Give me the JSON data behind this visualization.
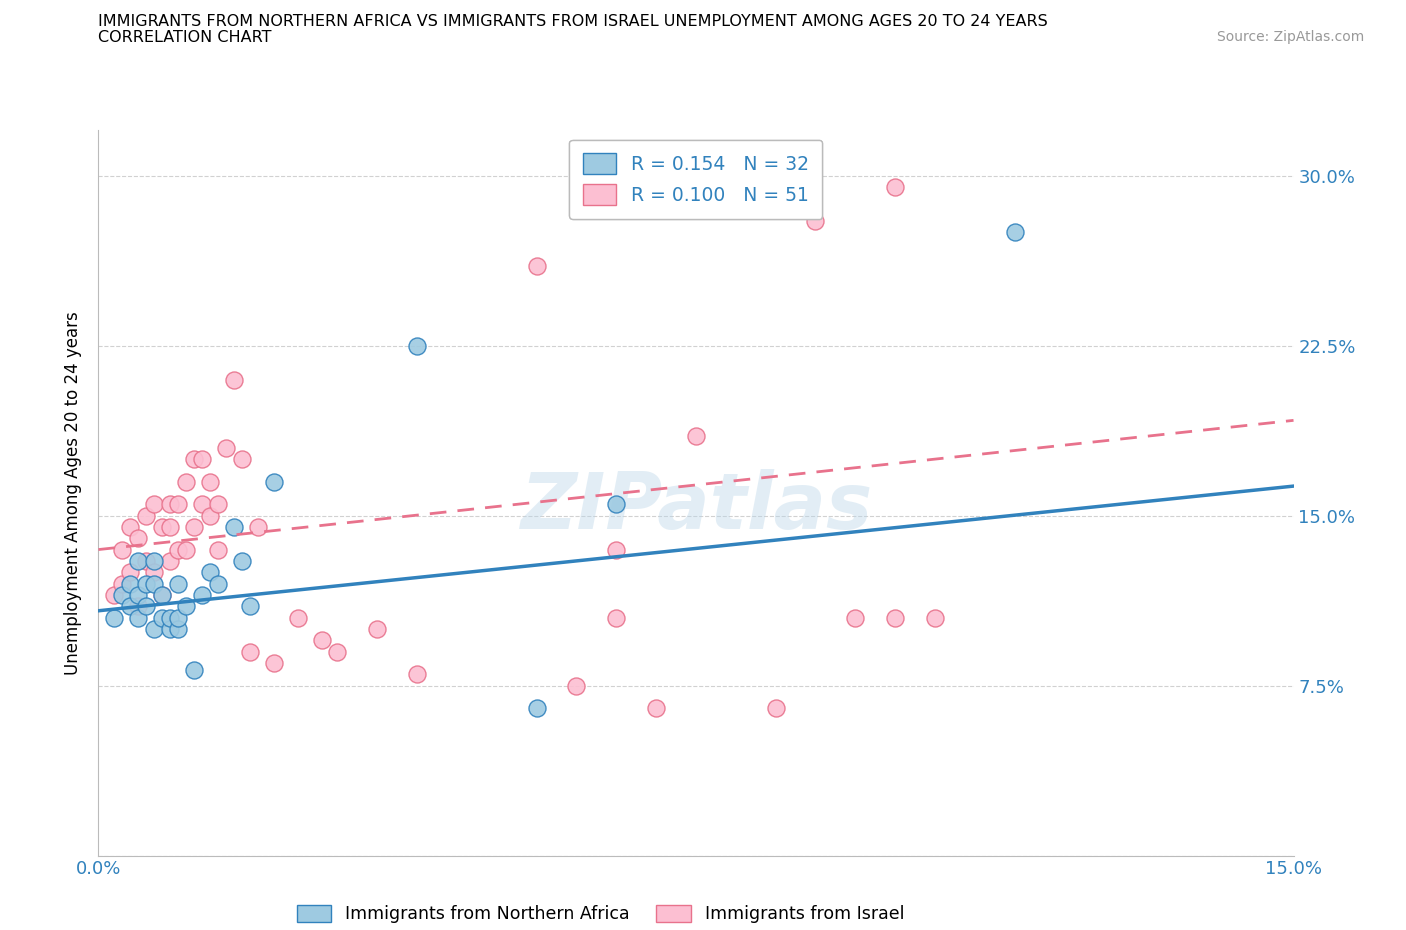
{
  "title_line1": "IMMIGRANTS FROM NORTHERN AFRICA VS IMMIGRANTS FROM ISRAEL UNEMPLOYMENT AMONG AGES 20 TO 24 YEARS",
  "title_line2": "CORRELATION CHART",
  "source_text": "Source: ZipAtlas.com",
  "ylabel": "Unemployment Among Ages 20 to 24 years",
  "xlim": [
    0.0,
    0.15
  ],
  "ylim": [
    0.0,
    0.32
  ],
  "xtick_positions": [
    0.0,
    0.05,
    0.1,
    0.15
  ],
  "xtick_labels": [
    "0.0%",
    "",
    "",
    "15.0%"
  ],
  "ytick_positions": [
    0.0,
    0.075,
    0.15,
    0.225,
    0.3
  ],
  "ytick_labels": [
    "",
    "7.5%",
    "15.0%",
    "22.5%",
    "30.0%"
  ],
  "color_blue": "#9ecae1",
  "color_pink": "#fcbfd2",
  "color_blue_dark": "#3182bd",
  "color_pink_dark": "#e8728c",
  "watermark": "ZIPatlas",
  "blue_line_x": [
    0.0,
    0.15
  ],
  "blue_line_y": [
    0.108,
    0.163
  ],
  "pink_line_x": [
    0.0,
    0.15
  ],
  "pink_line_y": [
    0.135,
    0.192
  ],
  "blue_scatter_x": [
    0.002,
    0.003,
    0.004,
    0.004,
    0.005,
    0.005,
    0.005,
    0.006,
    0.006,
    0.007,
    0.007,
    0.007,
    0.008,
    0.008,
    0.009,
    0.009,
    0.01,
    0.01,
    0.01,
    0.011,
    0.012,
    0.013,
    0.014,
    0.015,
    0.017,
    0.018,
    0.019,
    0.022,
    0.04,
    0.055,
    0.065,
    0.115
  ],
  "blue_scatter_y": [
    0.105,
    0.115,
    0.11,
    0.12,
    0.105,
    0.115,
    0.13,
    0.11,
    0.12,
    0.1,
    0.12,
    0.13,
    0.105,
    0.115,
    0.1,
    0.105,
    0.1,
    0.105,
    0.12,
    0.11,
    0.082,
    0.115,
    0.125,
    0.12,
    0.145,
    0.13,
    0.11,
    0.165,
    0.225,
    0.065,
    0.155,
    0.275
  ],
  "pink_scatter_x": [
    0.002,
    0.003,
    0.003,
    0.004,
    0.004,
    0.005,
    0.005,
    0.006,
    0.006,
    0.007,
    0.007,
    0.008,
    0.008,
    0.009,
    0.009,
    0.009,
    0.01,
    0.01,
    0.011,
    0.011,
    0.012,
    0.012,
    0.013,
    0.013,
    0.014,
    0.014,
    0.015,
    0.015,
    0.016,
    0.017,
    0.018,
    0.019,
    0.02,
    0.022,
    0.025,
    0.028,
    0.03,
    0.035,
    0.04,
    0.055,
    0.06,
    0.065,
    0.065,
    0.07,
    0.075,
    0.085,
    0.09,
    0.095,
    0.1,
    0.1,
    0.105
  ],
  "pink_scatter_y": [
    0.115,
    0.12,
    0.135,
    0.125,
    0.145,
    0.11,
    0.14,
    0.13,
    0.15,
    0.125,
    0.155,
    0.115,
    0.145,
    0.13,
    0.145,
    0.155,
    0.135,
    0.155,
    0.135,
    0.165,
    0.145,
    0.175,
    0.155,
    0.175,
    0.15,
    0.165,
    0.135,
    0.155,
    0.18,
    0.21,
    0.175,
    0.09,
    0.145,
    0.085,
    0.105,
    0.095,
    0.09,
    0.1,
    0.08,
    0.26,
    0.075,
    0.105,
    0.135,
    0.065,
    0.185,
    0.065,
    0.28,
    0.105,
    0.295,
    0.105,
    0.105
  ]
}
